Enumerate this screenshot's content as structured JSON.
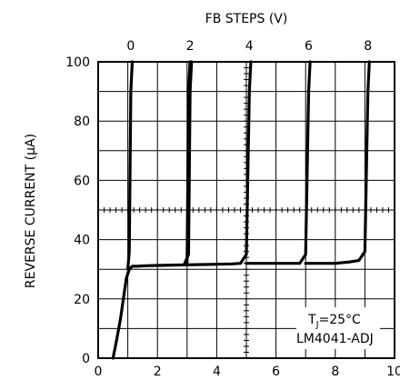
{
  "chart_data": {
    "type": "line",
    "top_axis_label": "FB STEPS (V)",
    "ylabel": "REVERSE CURRENT (μA)",
    "xlim": [
      0,
      10
    ],
    "ylim": [
      0,
      100
    ],
    "x_ticks": [
      "0",
      "2",
      "4",
      "6",
      "8",
      "10"
    ],
    "y_ticks": [
      "0",
      "20",
      "40",
      "60",
      "80",
      "100"
    ],
    "top_ticks": [
      {
        "label": "0",
        "x": 1.1
      },
      {
        "label": "2",
        "x": 3.1
      },
      {
        "label": "4",
        "x": 5.1
      },
      {
        "label": "6",
        "x": 7.1
      },
      {
        "label": "8",
        "x": 9.1
      }
    ],
    "grid": true,
    "annotation": {
      "line1_main": "T",
      "line1_sub": "J",
      "line1_rest": "=25°C",
      "line2": "LM4041-ADJ"
    },
    "series": [
      {
        "x": [
          0.5,
          0.6,
          0.75,
          0.85,
          0.95,
          1.05,
          1.15,
          1.3,
          1.6,
          2.0,
          2.5,
          3.0,
          3.05,
          3.1
        ],
        "y": [
          0,
          5,
          13,
          20,
          27,
          30,
          31,
          31,
          31.2,
          31.3,
          31.4,
          31.5,
          90,
          100
        ]
      },
      {
        "x": [
          1.0,
          1.05,
          1.1,
          1.15
        ],
        "y": [
          30,
          36,
          90,
          100
        ]
      },
      {
        "x": [
          2.9,
          3.05,
          3.1,
          3.15
        ],
        "y": [
          31.5,
          35,
          90,
          100
        ]
      },
      {
        "x": [
          3.0,
          3.5,
          4.0,
          4.5,
          4.8,
          5.0,
          5.1,
          5.15
        ],
        "y": [
          31.5,
          31.6,
          31.7,
          31.8,
          32,
          35,
          90,
          100
        ]
      },
      {
        "x": [
          5.0,
          5.5,
          6.0,
          6.5,
          6.8,
          7.0,
          7.1,
          7.15
        ],
        "y": [
          32,
          32,
          32,
          32,
          32,
          35,
          90,
          100
        ]
      },
      {
        "x": [
          7.0,
          7.5,
          8.0,
          8.5,
          8.8,
          9.0,
          9.1,
          9.15
        ],
        "y": [
          32,
          32,
          32,
          32.5,
          33,
          36,
          90,
          100
        ]
      }
    ]
  }
}
